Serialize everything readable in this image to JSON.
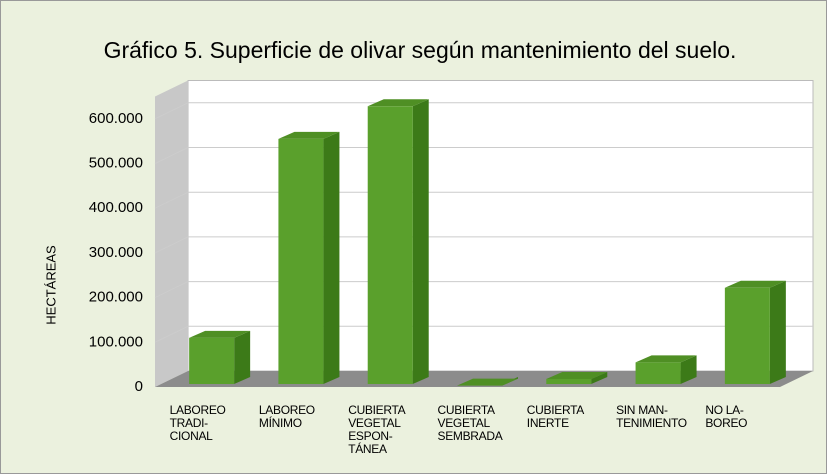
{
  "chart_data": {
    "type": "bar",
    "title": "Gráfico 5. Superficie de olivar según mantenimiento del suelo.",
    "y_label": "HECTÁREAS",
    "categories": [
      "LABOREO\nTRADI-\nCIONAL",
      "LABOREO\nMÍNIMO",
      "CUBIERTA\nVEGETAL\nESPON-\nTÁNEA",
      "CUBIERTA\nVEGETAL\nSEMBRADA",
      "CUBIERTA\nINERTE",
      "SIN MAN-\nTENIMIENTO",
      "NO LA-\nBOREO"
    ],
    "values": [
      110000,
      555000,
      628000,
      3000,
      18000,
      55000,
      222000
    ],
    "color": "#5aa02c",
    "ylim": [
      0,
      650000
    ],
    "yticks": [
      {
        "value": 0,
        "label": "0"
      },
      {
        "value": 100000,
        "label": "100.000"
      },
      {
        "value": 200000,
        "label": "200.000"
      },
      {
        "value": 300000,
        "label": "300.000"
      },
      {
        "value": 400000,
        "label": "400.000"
      },
      {
        "value": 500000,
        "label": "500.000"
      },
      {
        "value": 600000,
        "label": "600.000"
      }
    ],
    "grid": true
  }
}
